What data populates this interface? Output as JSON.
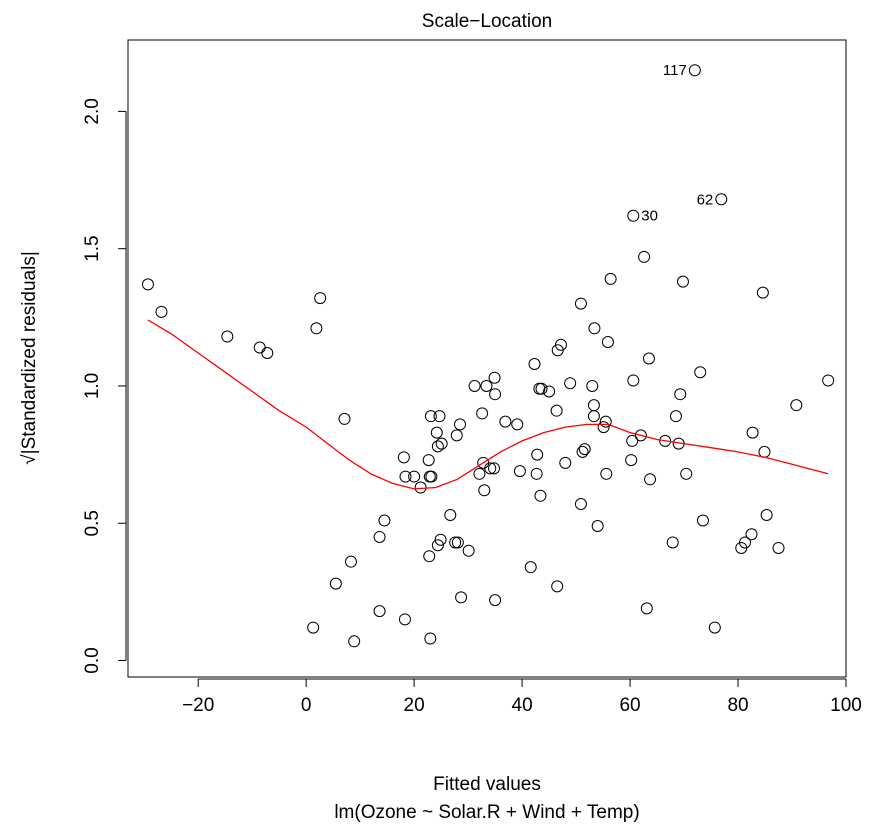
{
  "chart_data": {
    "type": "scatter",
    "title": "Scale−Location",
    "xlabel": "Fitted values",
    "subtitle": "lm(Ozone ~ Solar.R + Wind + Temp)",
    "ylabel": "√|Standardized residuals|",
    "xlim": [
      -33,
      100
    ],
    "ylim": [
      -0.06,
      2.26
    ],
    "xticks": [
      -20,
      0,
      20,
      40,
      60,
      80,
      100
    ],
    "xtick_labels": [
      "−20",
      "0",
      "20",
      "40",
      "60",
      "80",
      "100"
    ],
    "yticks": [
      0.0,
      0.5,
      1.0,
      1.5,
      2.0
    ],
    "ytick_labels": [
      "0.0",
      "0.5",
      "1.0",
      "1.5",
      "2.0"
    ],
    "grid": false,
    "point_color": "#000000",
    "smooth_color": "#ff0000",
    "points": [
      {
        "x": -29.3,
        "y": 1.37
      },
      {
        "x": -26.8,
        "y": 1.27
      },
      {
        "x": -14.6,
        "y": 1.18
      },
      {
        "x": -8.6,
        "y": 1.14
      },
      {
        "x": -7.2,
        "y": 1.12
      },
      {
        "x": 1.3,
        "y": 0.12
      },
      {
        "x": 1.9,
        "y": 1.21
      },
      {
        "x": 2.6,
        "y": 1.32
      },
      {
        "x": 5.5,
        "y": 0.28
      },
      {
        "x": 7.1,
        "y": 0.88
      },
      {
        "x": 8.3,
        "y": 0.36
      },
      {
        "x": 8.9,
        "y": 0.07
      },
      {
        "x": 13.6,
        "y": 0.45
      },
      {
        "x": 13.6,
        "y": 0.18
      },
      {
        "x": 14.5,
        "y": 0.51
      },
      {
        "x": 18.1,
        "y": 0.74
      },
      {
        "x": 18.3,
        "y": 0.15
      },
      {
        "x": 18.4,
        "y": 0.67
      },
      {
        "x": 20.0,
        "y": 0.67
      },
      {
        "x": 21.2,
        "y": 0.63
      },
      {
        "x": 22.7,
        "y": 0.73
      },
      {
        "x": 22.8,
        "y": 0.38
      },
      {
        "x": 22.9,
        "y": 0.67
      },
      {
        "x": 23.0,
        "y": 0.08
      },
      {
        "x": 23.1,
        "y": 0.89
      },
      {
        "x": 23.2,
        "y": 0.67
      },
      {
        "x": 24.2,
        "y": 0.83
      },
      {
        "x": 24.4,
        "y": 0.42
      },
      {
        "x": 24.4,
        "y": 0.78
      },
      {
        "x": 24.7,
        "y": 0.89
      },
      {
        "x": 24.9,
        "y": 0.44
      },
      {
        "x": 25.1,
        "y": 0.79
      },
      {
        "x": 26.7,
        "y": 0.53
      },
      {
        "x": 27.6,
        "y": 0.43
      },
      {
        "x": 27.9,
        "y": 0.82
      },
      {
        "x": 28.1,
        "y": 0.43
      },
      {
        "x": 28.5,
        "y": 0.86
      },
      {
        "x": 28.7,
        "y": 0.23
      },
      {
        "x": 30.1,
        "y": 0.4
      },
      {
        "x": 31.2,
        "y": 1.0
      },
      {
        "x": 32.1,
        "y": 0.68
      },
      {
        "x": 32.6,
        "y": 0.9
      },
      {
        "x": 32.8,
        "y": 0.72
      },
      {
        "x": 33.0,
        "y": 0.62
      },
      {
        "x": 33.4,
        "y": 1.0
      },
      {
        "x": 34.1,
        "y": 0.7
      },
      {
        "x": 34.8,
        "y": 0.7
      },
      {
        "x": 34.9,
        "y": 1.03
      },
      {
        "x": 35.0,
        "y": 0.97
      },
      {
        "x": 35.0,
        "y": 0.22
      },
      {
        "x": 36.9,
        "y": 0.87
      },
      {
        "x": 39.1,
        "y": 0.86
      },
      {
        "x": 39.6,
        "y": 0.69
      },
      {
        "x": 41.6,
        "y": 0.34
      },
      {
        "x": 42.3,
        "y": 1.08
      },
      {
        "x": 42.7,
        "y": 0.68
      },
      {
        "x": 42.8,
        "y": 0.75
      },
      {
        "x": 43.2,
        "y": 0.99
      },
      {
        "x": 43.4,
        "y": 0.6
      },
      {
        "x": 43.6,
        "y": 0.99
      },
      {
        "x": 45.0,
        "y": 0.98
      },
      {
        "x": 46.4,
        "y": 0.91
      },
      {
        "x": 46.5,
        "y": 0.27
      },
      {
        "x": 46.6,
        "y": 1.13
      },
      {
        "x": 47.2,
        "y": 1.15
      },
      {
        "x": 48.0,
        "y": 0.72
      },
      {
        "x": 48.9,
        "y": 1.01
      },
      {
        "x": 50.9,
        "y": 0.57
      },
      {
        "x": 50.9,
        "y": 1.3
      },
      {
        "x": 51.2,
        "y": 0.76
      },
      {
        "x": 51.6,
        "y": 0.77
      },
      {
        "x": 53.0,
        "y": 1.0
      },
      {
        "x": 53.3,
        "y": 0.93
      },
      {
        "x": 53.3,
        "y": 0.89
      },
      {
        "x": 53.4,
        "y": 1.21
      },
      {
        "x": 54.0,
        "y": 0.49
      },
      {
        "x": 55.1,
        "y": 0.85
      },
      {
        "x": 55.5,
        "y": 0.87
      },
      {
        "x": 55.6,
        "y": 0.68
      },
      {
        "x": 55.9,
        "y": 1.16
      },
      {
        "x": 56.4,
        "y": 1.39
      },
      {
        "x": 60.2,
        "y": 0.73
      },
      {
        "x": 60.4,
        "y": 0.8
      },
      {
        "x": 60.6,
        "y": 1.02
      },
      {
        "x": 60.6,
        "y": 1.62
      },
      {
        "x": 62.0,
        "y": 0.82
      },
      {
        "x": 62.6,
        "y": 1.47
      },
      {
        "x": 63.1,
        "y": 0.19
      },
      {
        "x": 63.5,
        "y": 1.1
      },
      {
        "x": 63.7,
        "y": 0.66
      },
      {
        "x": 66.5,
        "y": 0.8
      },
      {
        "x": 67.9,
        "y": 0.43
      },
      {
        "x": 68.5,
        "y": 0.89
      },
      {
        "x": 69.0,
        "y": 0.79
      },
      {
        "x": 69.3,
        "y": 0.97
      },
      {
        "x": 69.8,
        "y": 1.38
      },
      {
        "x": 70.4,
        "y": 0.68
      },
      {
        "x": 72.0,
        "y": 2.15
      },
      {
        "x": 73.0,
        "y": 1.05
      },
      {
        "x": 73.5,
        "y": 0.51
      },
      {
        "x": 75.7,
        "y": 0.12
      },
      {
        "x": 76.9,
        "y": 1.68
      },
      {
        "x": 80.6,
        "y": 0.41
      },
      {
        "x": 81.3,
        "y": 0.43
      },
      {
        "x": 82.5,
        "y": 0.46
      },
      {
        "x": 82.7,
        "y": 0.83
      },
      {
        "x": 84.6,
        "y": 1.34
      },
      {
        "x": 84.9,
        "y": 0.76
      },
      {
        "x": 85.3,
        "y": 0.53
      },
      {
        "x": 87.5,
        "y": 0.41
      },
      {
        "x": 90.8,
        "y": 0.93
      },
      {
        "x": 96.7,
        "y": 1.02
      }
    ],
    "annotations": [
      {
        "label": "117",
        "x": 72.0,
        "y": 2.15,
        "side": "left"
      },
      {
        "label": "30",
        "x": 60.6,
        "y": 1.62,
        "side": "right"
      },
      {
        "label": "62",
        "x": 76.9,
        "y": 1.68,
        "side": "left"
      }
    ],
    "smooth_line": [
      {
        "x": -29.3,
        "y": 1.24
      },
      {
        "x": -25.0,
        "y": 1.19
      },
      {
        "x": -20.0,
        "y": 1.12
      },
      {
        "x": -15.0,
        "y": 1.05
      },
      {
        "x": -10.0,
        "y": 0.98
      },
      {
        "x": -5.0,
        "y": 0.91
      },
      {
        "x": 0.0,
        "y": 0.85
      },
      {
        "x": 4.0,
        "y": 0.79
      },
      {
        "x": 8.0,
        "y": 0.73
      },
      {
        "x": 12.0,
        "y": 0.68
      },
      {
        "x": 16.0,
        "y": 0.645
      },
      {
        "x": 20.0,
        "y": 0.625
      },
      {
        "x": 24.0,
        "y": 0.63
      },
      {
        "x": 28.0,
        "y": 0.66
      },
      {
        "x": 32.0,
        "y": 0.71
      },
      {
        "x": 36.0,
        "y": 0.76
      },
      {
        "x": 40.0,
        "y": 0.8
      },
      {
        "x": 44.0,
        "y": 0.83
      },
      {
        "x": 48.0,
        "y": 0.85
      },
      {
        "x": 52.0,
        "y": 0.86
      },
      {
        "x": 56.0,
        "y": 0.86
      },
      {
        "x": 60.0,
        "y": 0.83
      },
      {
        "x": 65.0,
        "y": 0.805
      },
      {
        "x": 70.0,
        "y": 0.79
      },
      {
        "x": 75.0,
        "y": 0.775
      },
      {
        "x": 80.0,
        "y": 0.76
      },
      {
        "x": 85.0,
        "y": 0.74
      },
      {
        "x": 90.0,
        "y": 0.715
      },
      {
        "x": 96.7,
        "y": 0.68
      }
    ]
  }
}
